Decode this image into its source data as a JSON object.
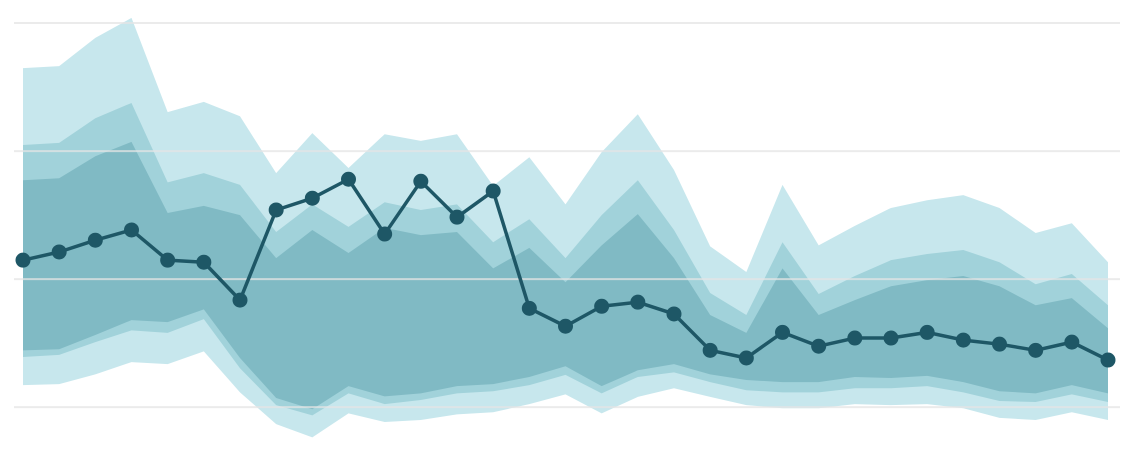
{
  "chart_data": {
    "type": "line",
    "categories": [
      null,
      null,
      null,
      null,
      null,
      null,
      null,
      null,
      null,
      null,
      null,
      null,
      null,
      null,
      null,
      null,
      null,
      null,
      null,
      null,
      null,
      null,
      null,
      null,
      null,
      null,
      null,
      null,
      null,
      null,
      null
    ],
    "ylim": [
      -10.9,
      79.5
    ],
    "yticks": [
      0,
      25,
      50,
      75
    ],
    "grid": true,
    "grid_color": "#e4e4e4",
    "bands": [
      {
        "color": "#c7e7ed",
        "upper": [
          66.2,
          66.6,
          72.1,
          76.0,
          57.6,
          59.6,
          56.8,
          45.7,
          53.5,
          46.7,
          53.3,
          52.0,
          53.3,
          43.2,
          48.8,
          39.6,
          49.8,
          57.2,
          46.3,
          31.4,
          26.4,
          43.4,
          31.6,
          35.4,
          38.9,
          40.4,
          41.4,
          38.9,
          34.0,
          35.9,
          28.3
        ],
        "lower": [
          4.3,
          4.5,
          6.4,
          8.8,
          8.4,
          10.9,
          2.9,
          -3.3,
          -5.9,
          -1.2,
          -2.9,
          -2.5,
          -1.4,
          -1.0,
          0.6,
          2.5,
          -1.2,
          2.0,
          3.7,
          2.0,
          0.4,
          -0.2,
          -0.2,
          0.6,
          0.4,
          0.6,
          -0.2,
          -2.1,
          -2.5,
          -1.0,
          -2.5
        ]
      },
      {
        "color": "#a1d2da",
        "upper": [
          51.2,
          51.6,
          56.4,
          59.4,
          43.9,
          45.7,
          43.4,
          34.2,
          39.6,
          35.2,
          40.0,
          38.5,
          39.6,
          32.2,
          36.7,
          29.1,
          37.5,
          44.3,
          34.6,
          22.3,
          18.0,
          32.2,
          22.1,
          25.6,
          28.7,
          29.9,
          30.7,
          28.3,
          24.0,
          26.0,
          19.9
        ],
        "lower": [
          9.8,
          10.2,
          12.7,
          15.0,
          14.5,
          17.2,
          7.6,
          0.4,
          -1.6,
          2.7,
          0.6,
          1.4,
          2.7,
          3.1,
          4.3,
          6.3,
          2.7,
          5.9,
          6.8,
          4.9,
          3.3,
          2.9,
          2.9,
          3.7,
          3.7,
          4.1,
          2.9,
          1.2,
          1.0,
          2.5,
          1.0
        ]
      },
      {
        "color": "#80bac4",
        "upper": [
          44.3,
          44.7,
          49.0,
          51.8,
          37.9,
          39.3,
          37.5,
          29.1,
          34.6,
          30.1,
          35.0,
          33.6,
          34.2,
          27.1,
          31.1,
          24.4,
          31.6,
          37.7,
          29.1,
          18.0,
          14.5,
          27.1,
          18.0,
          20.9,
          23.6,
          24.8,
          25.6,
          23.6,
          19.9,
          21.3,
          15.4
        ],
        "lower": [
          11.1,
          11.3,
          14.1,
          17.0,
          16.6,
          19.1,
          9.6,
          1.8,
          -0.4,
          4.1,
          2.1,
          2.7,
          4.1,
          4.5,
          5.9,
          8.0,
          4.1,
          7.2,
          8.4,
          6.4,
          5.3,
          4.9,
          4.9,
          5.9,
          5.7,
          6.1,
          4.9,
          3.1,
          2.7,
          4.3,
          2.7
        ]
      }
    ],
    "series": [
      {
        "color": "#1e5766",
        "values": [
          28.7,
          30.3,
          32.6,
          34.6,
          28.7,
          28.3,
          20.9,
          38.5,
          40.8,
          44.5,
          33.8,
          44.1,
          37.1,
          42.2,
          19.3,
          15.8,
          19.7,
          20.5,
          18.2,
          11.1,
          9.6,
          14.6,
          11.9,
          13.5,
          13.5,
          14.6,
          13.1,
          12.3,
          11.1,
          12.7,
          9.2
        ]
      }
    ]
  }
}
